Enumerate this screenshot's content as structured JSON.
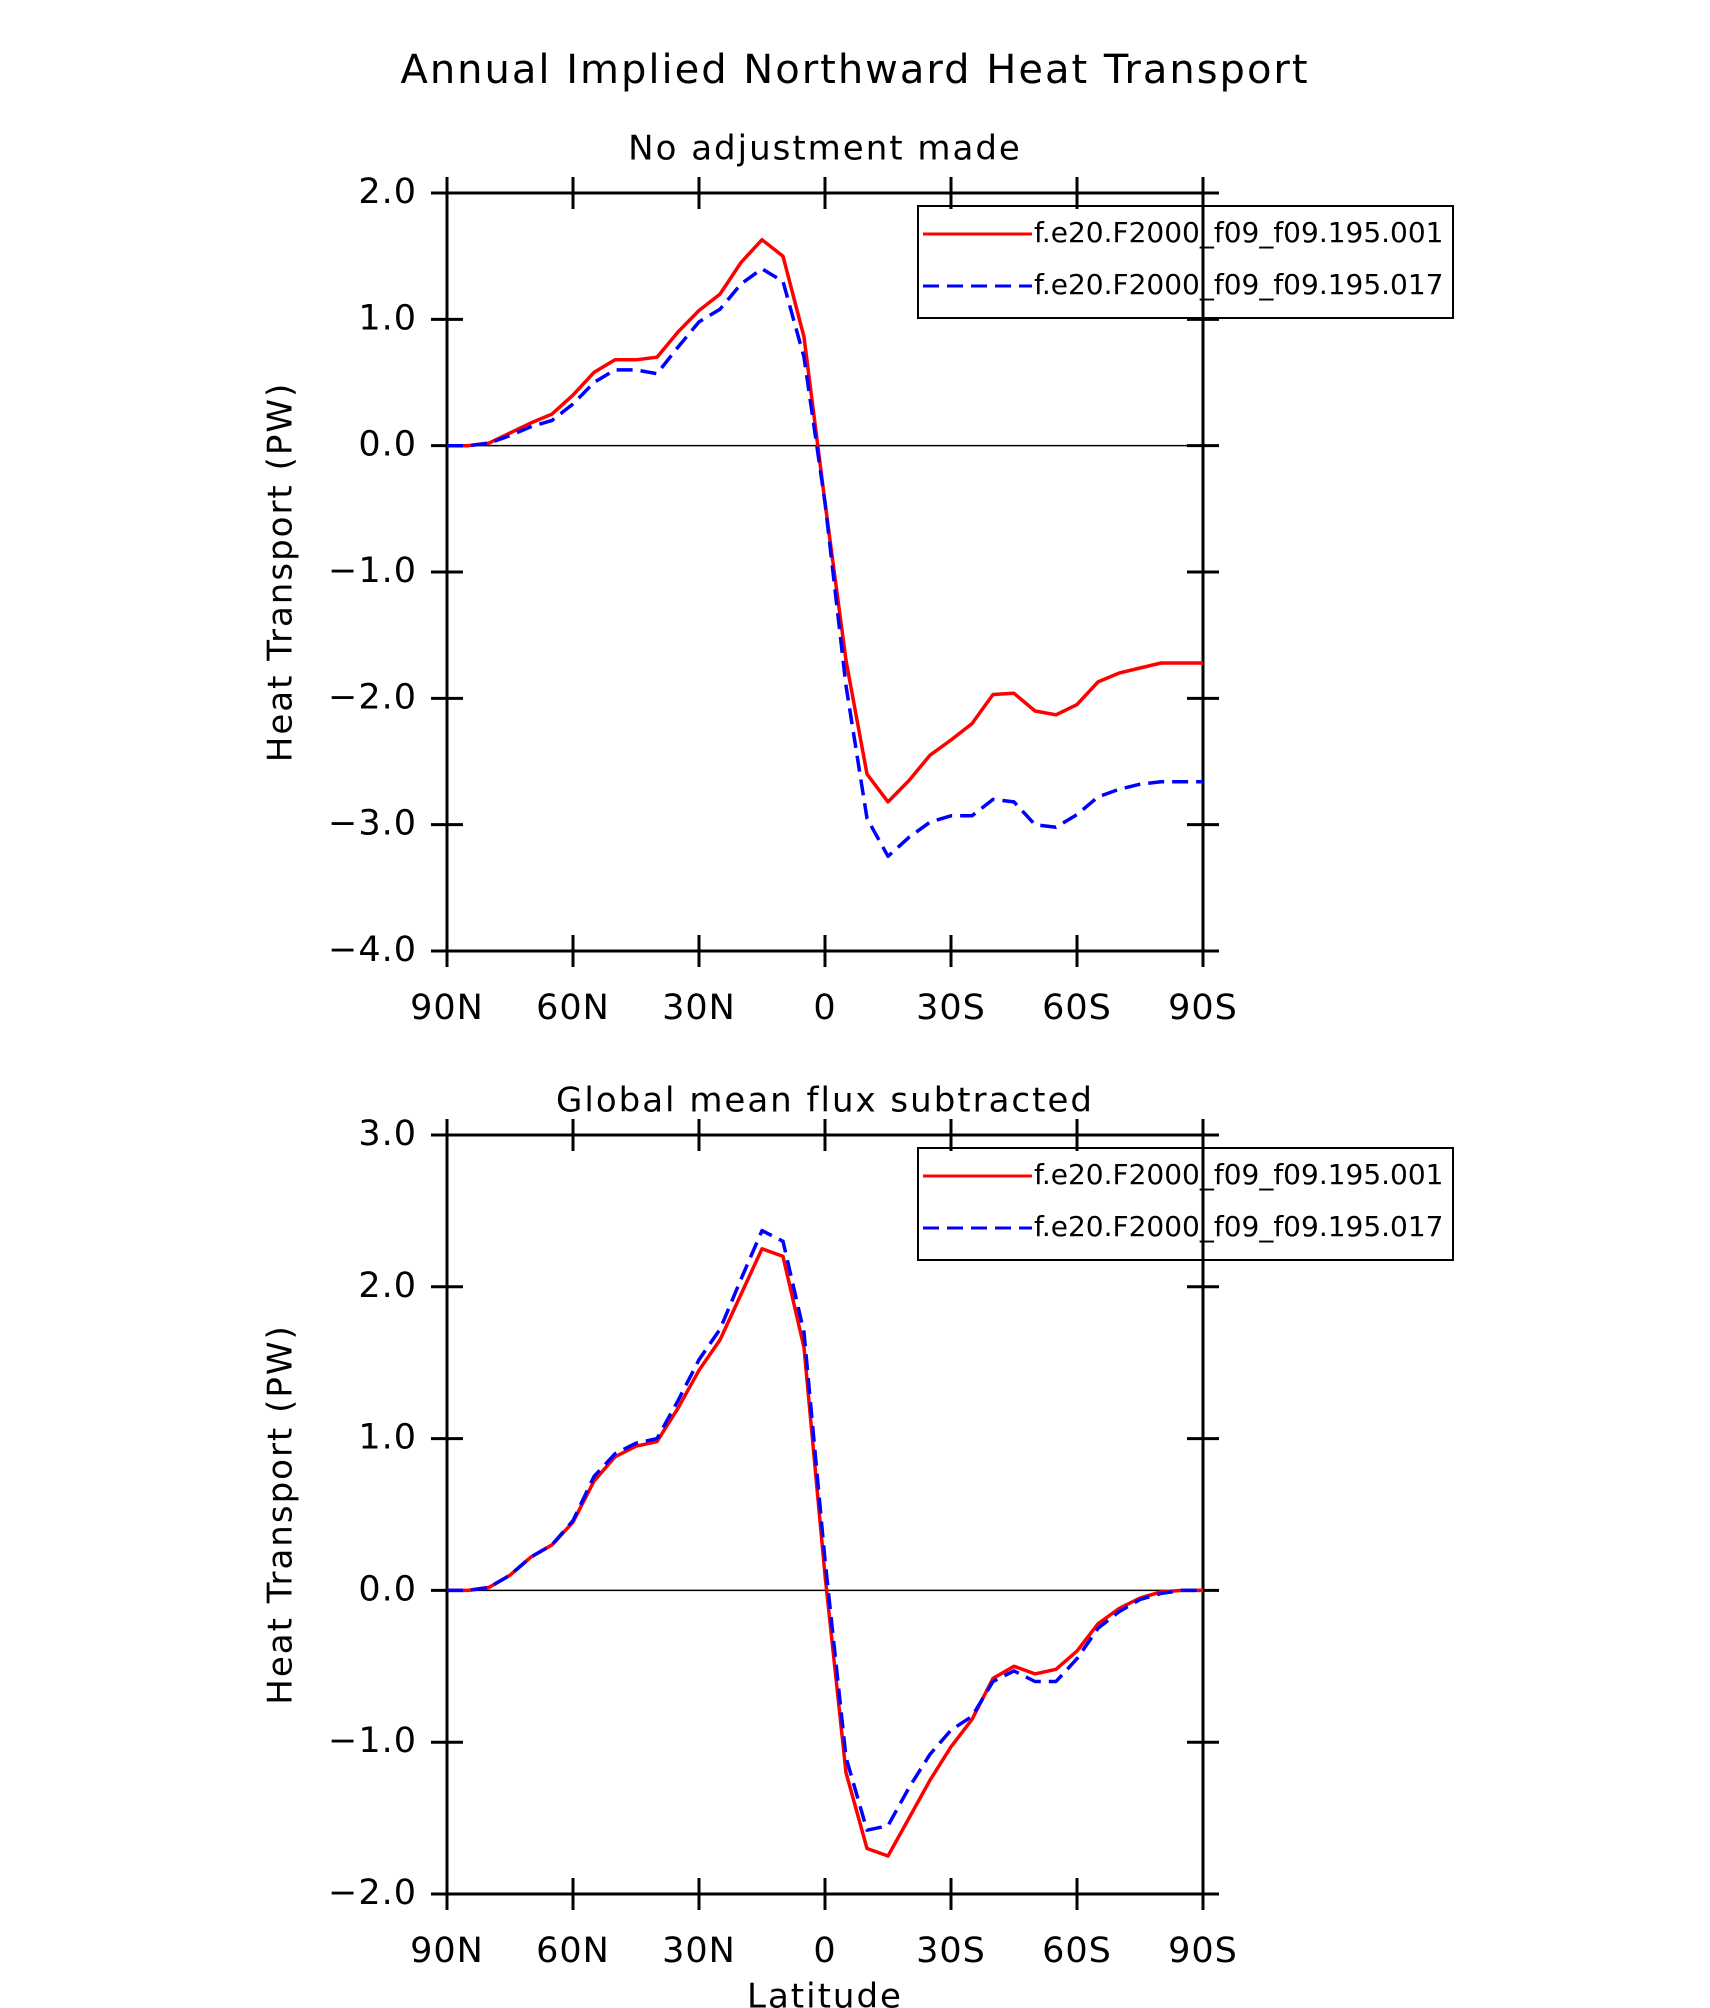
{
  "chart_data": [
    {
      "type": "line",
      "title": "Annual Implied Northward Heat Transport",
      "subtitle": "No adjustment made",
      "ylabel": "Heat Transport (PW)",
      "x": [
        90,
        85,
        80,
        75,
        70,
        65,
        60,
        55,
        50,
        45,
        40,
        35,
        30,
        25,
        20,
        15,
        10,
        5,
        0,
        -5,
        -10,
        -15,
        -20,
        -25,
        -30,
        -35,
        -40,
        -45,
        -50,
        -55,
        -60,
        -65,
        -70,
        -75,
        -80,
        -85,
        -90
      ],
      "xlim": [
        90,
        -90
      ],
      "xticks": [
        {
          "value": 90,
          "label": "90N"
        },
        {
          "value": 60,
          "label": "60N"
        },
        {
          "value": 30,
          "label": "30N"
        },
        0,
        {
          "value": -30,
          "label": "30S"
        },
        {
          "value": -60,
          "label": "60S"
        },
        {
          "value": -90,
          "label": "90S"
        }
      ],
      "ylim": [
        -4,
        2
      ],
      "yticks": [
        {
          "value": -4,
          "label": "−4.0"
        },
        {
          "value": -3,
          "label": "−3.0"
        },
        {
          "value": -2,
          "label": "−2.0"
        },
        {
          "value": -1,
          "label": "−1.0"
        },
        {
          "value": 0,
          "label": "0.0"
        },
        {
          "value": 1,
          "label": "1.0"
        },
        {
          "value": 2,
          "label": "2.0"
        }
      ],
      "zero_line": true,
      "legend": "upper right",
      "series": [
        {
          "name": "f.e20.F2000_f09_f09.195.001",
          "color": "#ff0000",
          "dash": false,
          "values": [
            0,
            0,
            0.02,
            0.1,
            0.18,
            0.25,
            0.4,
            0.58,
            0.68,
            0.68,
            0.7,
            0.9,
            1.07,
            1.2,
            1.45,
            1.63,
            1.5,
            0.86,
            -0.45,
            -1.7,
            -2.6,
            -2.82,
            -2.65,
            -2.45,
            -2.33,
            -2.2,
            -1.97,
            -1.96,
            -2.1,
            -2.13,
            -2.05,
            -1.87,
            -1.8,
            -1.76,
            -1.72,
            -1.72,
            -1.72
          ]
        },
        {
          "name": "f.e20.F2000_f09_f09.195.017",
          "color": "#0000ff",
          "dash": true,
          "values": [
            0,
            0,
            0.02,
            0.08,
            0.15,
            0.2,
            0.33,
            0.5,
            0.6,
            0.6,
            0.57,
            0.78,
            0.98,
            1.08,
            1.28,
            1.4,
            1.3,
            0.7,
            -0.45,
            -1.9,
            -2.95,
            -3.25,
            -3.1,
            -2.98,
            -2.93,
            -2.93,
            -2.8,
            -2.82,
            -3.0,
            -3.02,
            -2.92,
            -2.78,
            -2.72,
            -2.68,
            -2.66,
            -2.66,
            -2.66
          ]
        }
      ]
    },
    {
      "type": "line",
      "subtitle": "Global mean flux subtracted",
      "ylabel": "Heat Transport (PW)",
      "xlabel": "Latitude",
      "x": [
        90,
        85,
        80,
        75,
        70,
        65,
        60,
        55,
        50,
        45,
        40,
        35,
        30,
        25,
        20,
        15,
        10,
        5,
        0,
        -5,
        -10,
        -15,
        -20,
        -25,
        -30,
        -35,
        -40,
        -45,
        -50,
        -55,
        -60,
        -65,
        -70,
        -75,
        -80,
        -85,
        -90
      ],
      "xlim": [
        90,
        -90
      ],
      "xticks": [
        {
          "value": 90,
          "label": "90N"
        },
        {
          "value": 60,
          "label": "60N"
        },
        {
          "value": 30,
          "label": "30N"
        },
        0,
        {
          "value": -30,
          "label": "30S"
        },
        {
          "value": -60,
          "label": "60S"
        },
        {
          "value": -90,
          "label": "90S"
        }
      ],
      "ylim": [
        -2,
        3
      ],
      "yticks": [
        {
          "value": -2,
          "label": "−2.0"
        },
        {
          "value": -1,
          "label": "−1.0"
        },
        {
          "value": 0,
          "label": "0.0"
        },
        {
          "value": 1,
          "label": "1.0"
        },
        {
          "value": 2,
          "label": "2.0"
        },
        {
          "value": 3,
          "label": "3.0"
        }
      ],
      "zero_line": true,
      "legend": "upper right",
      "series": [
        {
          "name": "f.e20.F2000_f09_f09.195.001",
          "color": "#ff0000",
          "dash": false,
          "values": [
            0,
            0,
            0.02,
            0.1,
            0.22,
            0.3,
            0.45,
            0.72,
            0.88,
            0.95,
            0.98,
            1.2,
            1.45,
            1.65,
            1.95,
            2.25,
            2.2,
            1.6,
            0.1,
            -1.2,
            -1.7,
            -1.75,
            -1.5,
            -1.25,
            -1.03,
            -0.85,
            -0.58,
            -0.5,
            -0.55,
            -0.52,
            -0.4,
            -0.22,
            -0.12,
            -0.05,
            -0.01,
            0,
            0
          ]
        },
        {
          "name": "f.e20.F2000_f09_f09.195.017",
          "color": "#0000ff",
          "dash": true,
          "values": [
            0,
            0,
            0.02,
            0.1,
            0.22,
            0.3,
            0.46,
            0.75,
            0.9,
            0.97,
            1.0,
            1.25,
            1.52,
            1.72,
            2.05,
            2.37,
            2.3,
            1.7,
            0.2,
            -1.1,
            -1.58,
            -1.55,
            -1.3,
            -1.08,
            -0.92,
            -0.83,
            -0.6,
            -0.53,
            -0.6,
            -0.6,
            -0.45,
            -0.25,
            -0.14,
            -0.06,
            -0.02,
            0,
            0
          ]
        }
      ]
    }
  ]
}
